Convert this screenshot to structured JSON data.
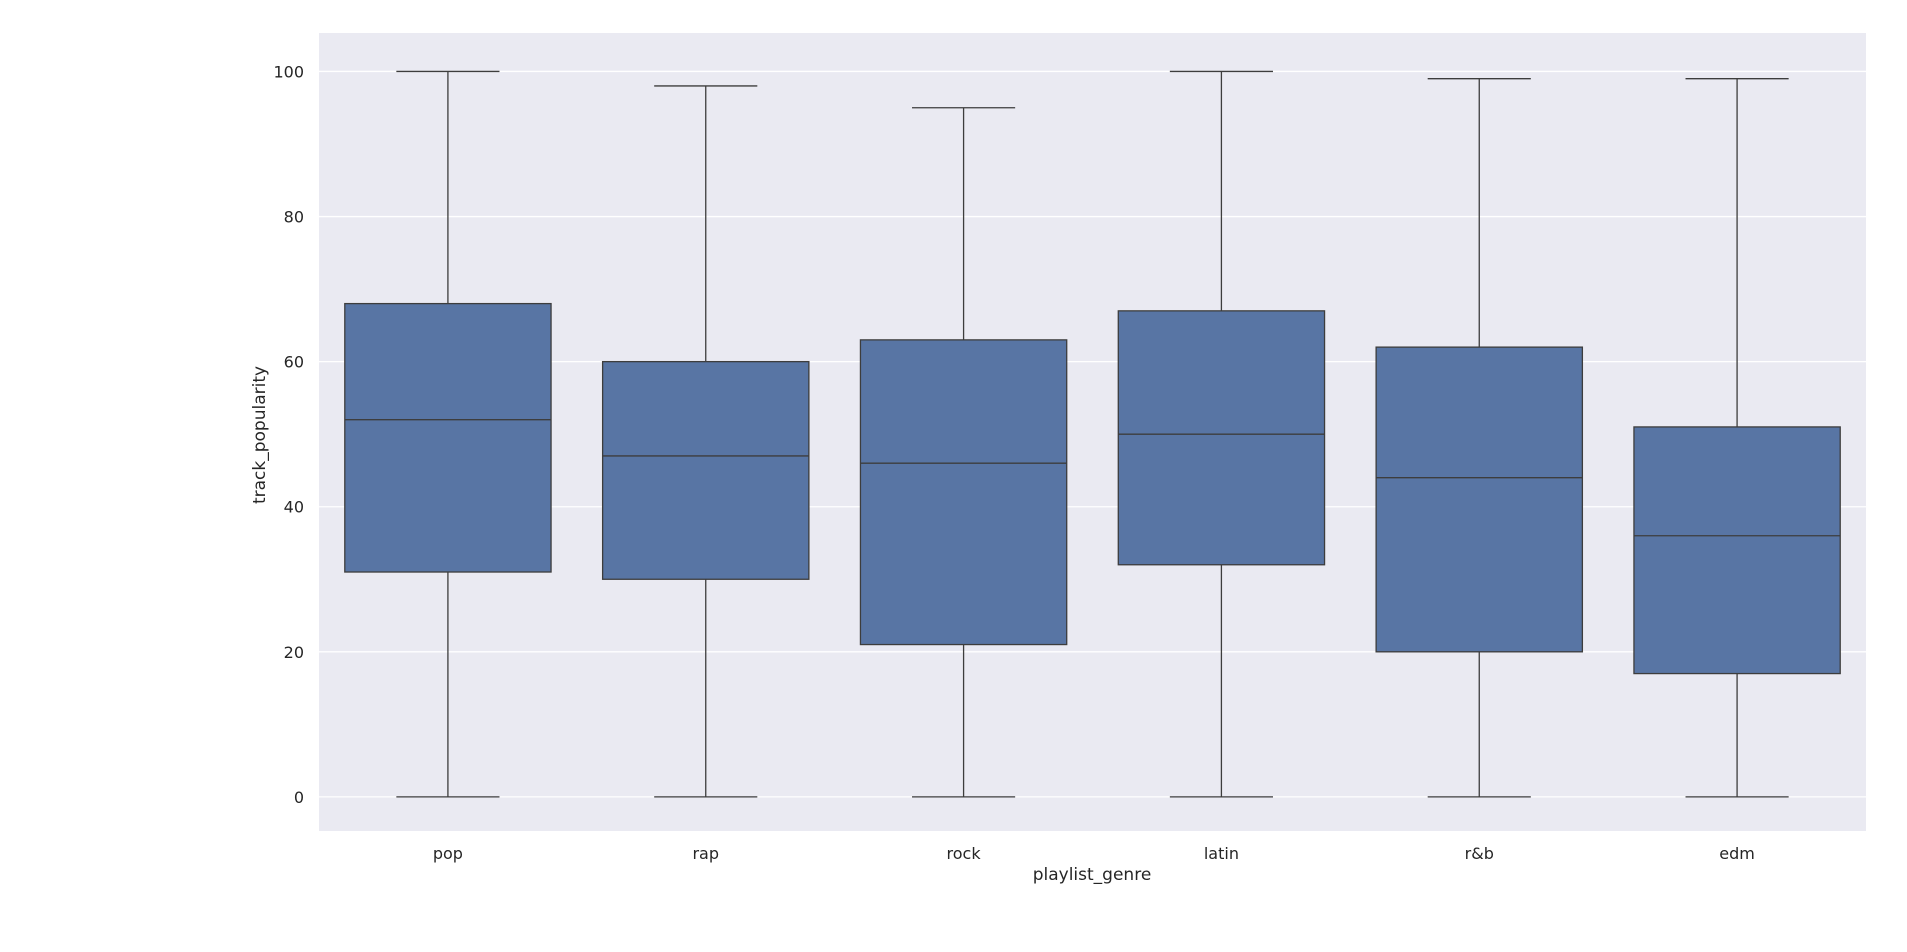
{
  "chart_data": {
    "type": "box",
    "title": "",
    "xlabel": "playlist_genre",
    "ylabel": "track_popularity",
    "categories": [
      "pop",
      "rap",
      "rock",
      "latin",
      "r&b",
      "edm"
    ],
    "boxes": [
      {
        "category": "pop",
        "whisker_low": 0,
        "q1": 31,
        "median": 52,
        "q3": 68,
        "whisker_high": 100
      },
      {
        "category": "rap",
        "whisker_low": 0,
        "q1": 30,
        "median": 47,
        "q3": 60,
        "whisker_high": 98
      },
      {
        "category": "rock",
        "whisker_low": 0,
        "q1": 21,
        "median": 46,
        "q3": 63,
        "whisker_high": 95
      },
      {
        "category": "latin",
        "whisker_low": 0,
        "q1": 32,
        "median": 50,
        "q3": 67,
        "whisker_high": 100
      },
      {
        "category": "r&b",
        "whisker_low": 0,
        "q1": 20,
        "median": 44,
        "q3": 62,
        "whisker_high": 99
      },
      {
        "category": "edm",
        "whisker_low": 0,
        "q1": 17,
        "median": 36,
        "q3": 51,
        "whisker_high": 99
      }
    ],
    "yticks": [
      0,
      20,
      40,
      60,
      80,
      100
    ],
    "ylim": [
      -4.7,
      105.3
    ],
    "grid": true,
    "colors": {
      "box_fill": "#5875a4",
      "line": "#3d3d3d",
      "plot_background": "#eaeaf2",
      "grid": "#ffffff"
    }
  }
}
